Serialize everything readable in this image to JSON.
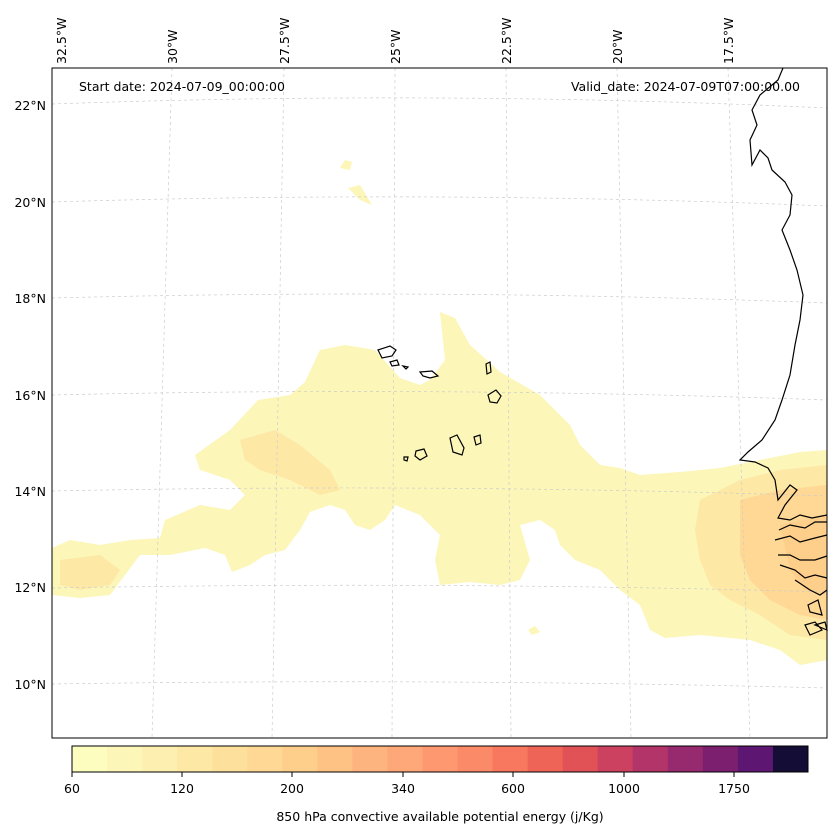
{
  "header": {
    "start_date": "Start date: 2024-07-09_00:00:00",
    "valid_date": "Valid_date: 2024-07-09T07:00:00.00"
  },
  "longitude_labels": [
    "32.5°W",
    "30°W",
    "27.5°W",
    "25°W",
    "22.5°W",
    "20°W",
    "17.5°W"
  ],
  "latitude_labels": [
    "22°N",
    "20°N",
    "18°N",
    "16°N",
    "14°N",
    "12°N",
    "10°N"
  ],
  "colorbar": {
    "label": "850 hPa convective available potential energy (j/Kg)",
    "tick_labels": [
      "60",
      "120",
      "200",
      "340",
      "600",
      "1000",
      "1750"
    ],
    "colors": [
      "#fcfdbf",
      "#fcf6b8",
      "#fcefb0",
      "#fde8a6",
      "#fee09d",
      "#fed894",
      "#fecf8b",
      "#fec285",
      "#feb47e",
      "#fea778",
      "#fd9870",
      "#fb8a68",
      "#f7785f",
      "#ee6457",
      "#e05256",
      "#cc4060",
      "#b23468",
      "#97296e",
      "#7c1f6f",
      "#5e1673",
      "#140e36"
    ]
  },
  "colors": {
    "gridline": "#cccccc",
    "coastline": "#000000",
    "field_low": "#fcf6b8",
    "field_mid": "#fde8a6",
    "field_high": "#fed894"
  }
}
